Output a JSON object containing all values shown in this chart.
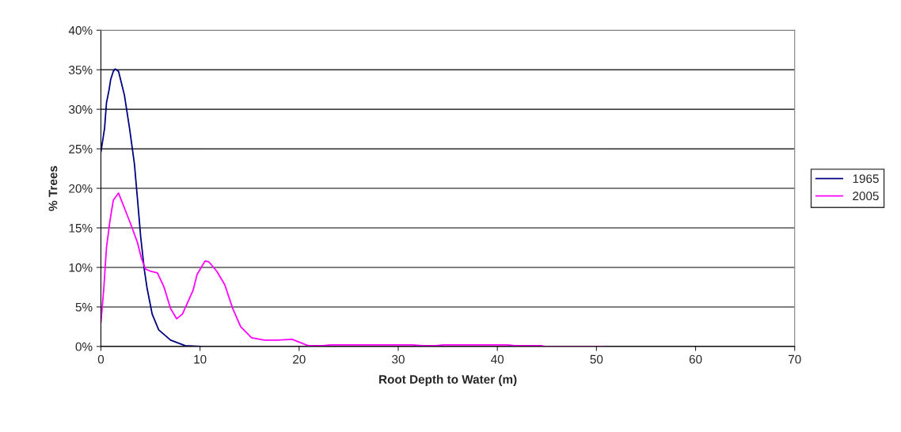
{
  "chart_data": {
    "type": "line",
    "xlabel": "Root Depth to Water (m)",
    "ylabel": "% Trees",
    "series": [
      {
        "name": "1965",
        "color": "#000080",
        "x": [
          0,
          0.37,
          0.56,
          0.83,
          0.99,
          1.25,
          1.44,
          1.78,
          2.37,
          2.9,
          3.38,
          3.7,
          4.02,
          4.37,
          4.64,
          5.17,
          5.83,
          7.03,
          8.5,
          10.1
        ],
        "values": [
          24.6,
          27.6,
          30.8,
          32.5,
          33.8,
          34.8,
          35.1,
          34.8,
          31.8,
          27.5,
          23.1,
          18.5,
          13.8,
          9.8,
          7.5,
          4.1,
          2.1,
          0.8,
          0.1,
          0
        ]
      },
      {
        "name": "2005",
        "color": "#ff00ff",
        "x": [
          0,
          0.3,
          0.56,
          0.9,
          1.25,
          1.78,
          2.5,
          3.12,
          3.7,
          4.1,
          4.5,
          5.04,
          5.7,
          6.37,
          7.03,
          7.65,
          8.23,
          9.3,
          9.7,
          10.5,
          10.9,
          11.7,
          12.5,
          13.3,
          14.1,
          15.2,
          16.5,
          17.8,
          19.3,
          20.9,
          22.4,
          23.2,
          31.4,
          32.5,
          33.8,
          34.6,
          41.0,
          41.8,
          44.4,
          44.8,
          50.8
        ],
        "values": [
          3.0,
          7.5,
          12.5,
          15.8,
          18.5,
          19.4,
          17.1,
          15.1,
          13.1,
          11.1,
          9.8,
          9.5,
          9.3,
          7.5,
          4.8,
          3.5,
          4.1,
          7.1,
          9.1,
          10.8,
          10.7,
          9.5,
          7.8,
          4.8,
          2.5,
          1.1,
          0.8,
          0.8,
          0.9,
          0.1,
          0.1,
          0.2,
          0.2,
          0.1,
          0.1,
          0.2,
          0.2,
          0.1,
          0.1,
          0,
          0
        ]
      }
    ],
    "xlim": [
      0,
      70
    ],
    "xticks": [
      0,
      10,
      20,
      30,
      40,
      50,
      60,
      70
    ],
    "ylim": [
      0,
      40
    ],
    "yticks": [
      {
        "value": 0,
        "label": "0%"
      },
      {
        "value": 5,
        "label": "5%"
      },
      {
        "value": 10,
        "label": "10%"
      },
      {
        "value": 15,
        "label": "15%"
      },
      {
        "value": 20,
        "label": "20%"
      },
      {
        "value": 25,
        "label": "25%"
      },
      {
        "value": 30,
        "label": "30%"
      },
      {
        "value": 35,
        "label": "35%"
      },
      {
        "value": 40,
        "label": "40%"
      }
    ],
    "grid": "y",
    "legend": "right",
    "marker": "none",
    "line_style": "solid"
  }
}
